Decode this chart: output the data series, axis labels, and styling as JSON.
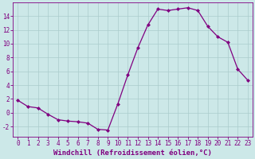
{
  "x": [
    0,
    1,
    2,
    3,
    4,
    5,
    6,
    7,
    8,
    9,
    10,
    11,
    12,
    13,
    14,
    15,
    16,
    17,
    18,
    19,
    20,
    21,
    22,
    23
  ],
  "y": [
    1.8,
    0.9,
    0.7,
    -0.2,
    -1.0,
    -1.2,
    -1.3,
    -1.5,
    -2.4,
    -2.5,
    1.3,
    5.5,
    9.4,
    12.7,
    15.0,
    14.8,
    15.0,
    15.2,
    14.8,
    12.5,
    11.0,
    10.2,
    6.3,
    4.7
  ],
  "line_color": "#800080",
  "marker": "D",
  "marker_size": 2.0,
  "bg_color": "#cce8e8",
  "grid_color": "#aacccc",
  "xlabel": "Windchill (Refroidissement éolien,°C)",
  "ylim": [
    -3.5,
    16.0
  ],
  "xlim": [
    -0.5,
    23.5
  ],
  "yticks": [
    -2,
    0,
    2,
    4,
    6,
    8,
    10,
    12,
    14
  ],
  "xticks": [
    0,
    1,
    2,
    3,
    4,
    5,
    6,
    7,
    8,
    9,
    10,
    11,
    12,
    13,
    14,
    15,
    16,
    17,
    18,
    19,
    20,
    21,
    22,
    23
  ],
  "tick_color": "#800080",
  "label_color": "#800080",
  "tick_fontsize": 5.5,
  "xlabel_fontsize": 6.5,
  "linewidth": 0.9
}
